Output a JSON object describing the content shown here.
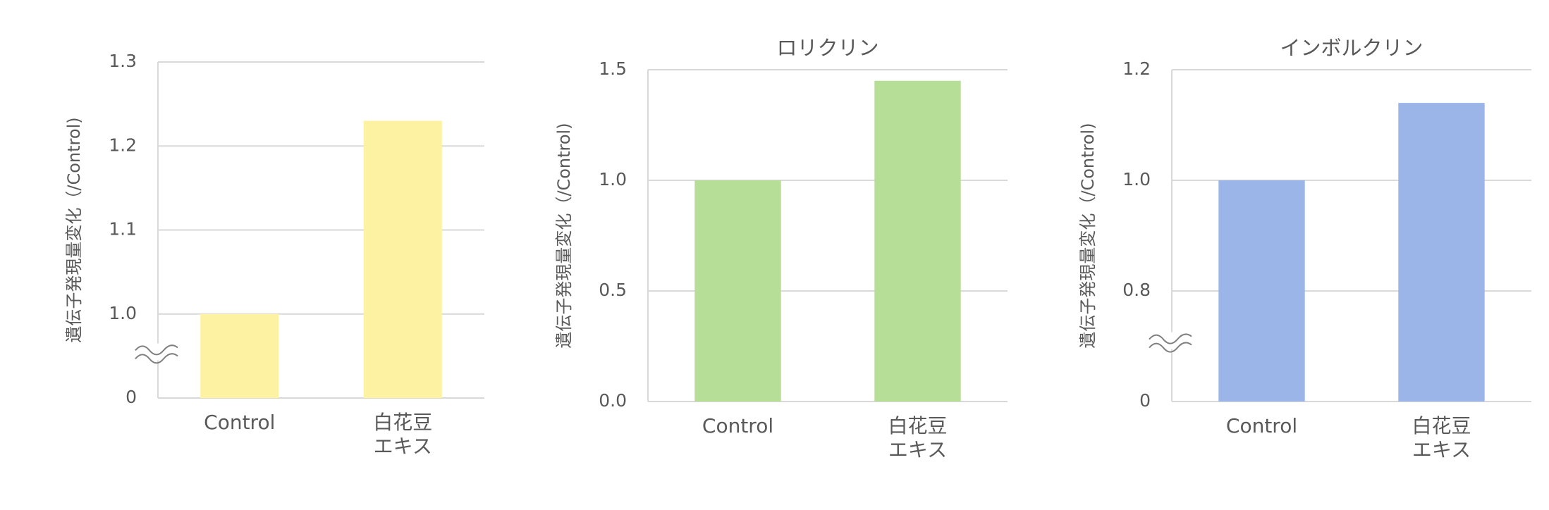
{
  "chart_data": [
    {
      "type": "bar",
      "ylabel": "遺伝子発現量変化（/Control)",
      "categories": [
        "Control",
        "白花豆\nエキス"
      ],
      "values": [
        1,
        1.23
      ],
      "color": "#fdf2a2",
      "ylim": [
        0,
        1.3
      ],
      "yticks": [
        0,
        {
          "value": 1,
          "label": "1.0"
        },
        1.1,
        1.2,
        1.3
      ],
      "axis_break": true,
      "grid": true
    },
    {
      "type": "bar",
      "title": "ロリクリン",
      "ylabel": "遺伝子発現量変化（/Control)",
      "categories": [
        "Control",
        "白花豆\nエキス"
      ],
      "values": [
        1,
        1.45
      ],
      "color": "#b6de97",
      "ylim": [
        0,
        1.5
      ],
      "yticks": [
        {
          "value": 0,
          "label": "0.0"
        },
        0.5,
        {
          "value": 1,
          "label": "1.0"
        },
        1.5
      ],
      "axis_break": false,
      "grid": true
    },
    {
      "type": "bar",
      "title": "インボルクリン",
      "ylabel": "遺伝子発現量変化（/Control)",
      "categories": [
        "Control",
        "白花豆\nエキス"
      ],
      "values": [
        1,
        1.14
      ],
      "color": "#9bb5e9",
      "ylim": [
        0,
        1.2
      ],
      "yticks": [
        0,
        0.8,
        {
          "value": 1,
          "label": "1.0"
        },
        1.2
      ],
      "axis_break": true,
      "grid": true
    }
  ]
}
